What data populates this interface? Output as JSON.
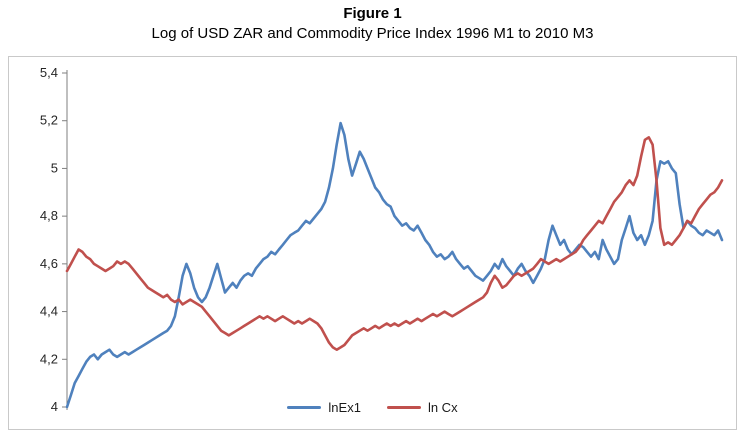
{
  "figure": {
    "title": "Figure 1",
    "subtitle": "Log of USD ZAR and Commodity Price Index 1996 M1 to 2010 M3"
  },
  "chart_data": {
    "type": "line",
    "title": "Figure 1",
    "subtitle": "Log of USD ZAR and Commodity Price Index 1996 M1 to 2010 M3",
    "x_description": "Monthly observations from 1996 M1 to 2010 M3 (171 months, x axis has no visible tick labels)",
    "xlabel": "",
    "ylabel": "",
    "ylim": [
      4.0,
      5.4
    ],
    "grid": false,
    "legend_position": "bottom-center",
    "axis_color": "#7f7f7f",
    "y_ticks": [
      {
        "value": 5.4,
        "label": "5,4"
      },
      {
        "value": 5.2,
        "label": "5,2"
      },
      {
        "value": 5.0,
        "label": "5"
      },
      {
        "value": 4.8,
        "label": "4,8"
      },
      {
        "value": 4.6,
        "label": "4,6"
      },
      {
        "value": 4.4,
        "label": "4,4"
      },
      {
        "value": 4.2,
        "label": "4,2"
      },
      {
        "value": 4.0,
        "label": "4"
      }
    ],
    "series": [
      {
        "name": "lnEx1",
        "color": "#4F81BD",
        "values": [
          4.0,
          4.05,
          4.1,
          4.13,
          4.16,
          4.19,
          4.21,
          4.22,
          4.2,
          4.22,
          4.23,
          4.24,
          4.22,
          4.21,
          4.22,
          4.23,
          4.22,
          4.23,
          4.24,
          4.25,
          4.26,
          4.27,
          4.28,
          4.29,
          4.3,
          4.31,
          4.32,
          4.34,
          4.38,
          4.46,
          4.55,
          4.6,
          4.56,
          4.5,
          4.46,
          4.44,
          4.46,
          4.5,
          4.55,
          4.6,
          4.54,
          4.48,
          4.5,
          4.52,
          4.5,
          4.53,
          4.55,
          4.56,
          4.55,
          4.58,
          4.6,
          4.62,
          4.63,
          4.65,
          4.64,
          4.66,
          4.68,
          4.7,
          4.72,
          4.73,
          4.74,
          4.76,
          4.78,
          4.77,
          4.79,
          4.81,
          4.83,
          4.86,
          4.92,
          5.0,
          5.1,
          5.19,
          5.14,
          5.04,
          4.97,
          5.02,
          5.07,
          5.04,
          5.0,
          4.96,
          4.92,
          4.9,
          4.87,
          4.85,
          4.84,
          4.8,
          4.78,
          4.76,
          4.77,
          4.75,
          4.74,
          4.76,
          4.73,
          4.7,
          4.68,
          4.65,
          4.63,
          4.64,
          4.62,
          4.63,
          4.65,
          4.62,
          4.6,
          4.58,
          4.59,
          4.57,
          4.55,
          4.54,
          4.53,
          4.55,
          4.57,
          4.6,
          4.58,
          4.62,
          4.59,
          4.57,
          4.55,
          4.58,
          4.6,
          4.57,
          4.55,
          4.52,
          4.55,
          4.58,
          4.62,
          4.7,
          4.76,
          4.72,
          4.68,
          4.7,
          4.66,
          4.64,
          4.66,
          4.68,
          4.67,
          4.65,
          4.63,
          4.65,
          4.62,
          4.7,
          4.66,
          4.63,
          4.6,
          4.62,
          4.7,
          4.75,
          4.8,
          4.73,
          4.7,
          4.72,
          4.68,
          4.72,
          4.78,
          4.95,
          5.03,
          5.02,
          5.03,
          5.0,
          4.98,
          4.85,
          4.75,
          4.78,
          4.76,
          4.75,
          4.73,
          4.72,
          4.74,
          4.73,
          4.72,
          4.74,
          4.7
        ]
      },
      {
        "name": "ln Cx",
        "color": "#C0504D",
        "values": [
          4.57,
          4.6,
          4.63,
          4.66,
          4.65,
          4.63,
          4.62,
          4.6,
          4.59,
          4.58,
          4.57,
          4.58,
          4.59,
          4.61,
          4.6,
          4.61,
          4.6,
          4.58,
          4.56,
          4.54,
          4.52,
          4.5,
          4.49,
          4.48,
          4.47,
          4.46,
          4.47,
          4.45,
          4.44,
          4.45,
          4.43,
          4.44,
          4.45,
          4.44,
          4.43,
          4.42,
          4.4,
          4.38,
          4.36,
          4.34,
          4.32,
          4.31,
          4.3,
          4.31,
          4.32,
          4.33,
          4.34,
          4.35,
          4.36,
          4.37,
          4.38,
          4.37,
          4.38,
          4.37,
          4.36,
          4.37,
          4.38,
          4.37,
          4.36,
          4.35,
          4.36,
          4.35,
          4.36,
          4.37,
          4.36,
          4.35,
          4.33,
          4.3,
          4.27,
          4.25,
          4.24,
          4.25,
          4.26,
          4.28,
          4.3,
          4.31,
          4.32,
          4.33,
          4.32,
          4.33,
          4.34,
          4.33,
          4.34,
          4.35,
          4.34,
          4.35,
          4.34,
          4.35,
          4.36,
          4.35,
          4.36,
          4.37,
          4.36,
          4.37,
          4.38,
          4.39,
          4.38,
          4.39,
          4.4,
          4.39,
          4.38,
          4.39,
          4.4,
          4.41,
          4.42,
          4.43,
          4.44,
          4.45,
          4.46,
          4.48,
          4.52,
          4.55,
          4.53,
          4.5,
          4.51,
          4.53,
          4.55,
          4.56,
          4.55,
          4.56,
          4.57,
          4.58,
          4.6,
          4.62,
          4.61,
          4.6,
          4.61,
          4.62,
          4.61,
          4.62,
          4.63,
          4.64,
          4.65,
          4.67,
          4.7,
          4.72,
          4.74,
          4.76,
          4.78,
          4.77,
          4.8,
          4.83,
          4.86,
          4.88,
          4.9,
          4.93,
          4.95,
          4.93,
          4.97,
          5.05,
          5.12,
          5.13,
          5.1,
          4.95,
          4.75,
          4.68,
          4.69,
          4.68,
          4.7,
          4.72,
          4.75,
          4.78,
          4.77,
          4.8,
          4.83,
          4.85,
          4.87,
          4.89,
          4.9,
          4.92,
          4.95
        ]
      }
    ]
  }
}
